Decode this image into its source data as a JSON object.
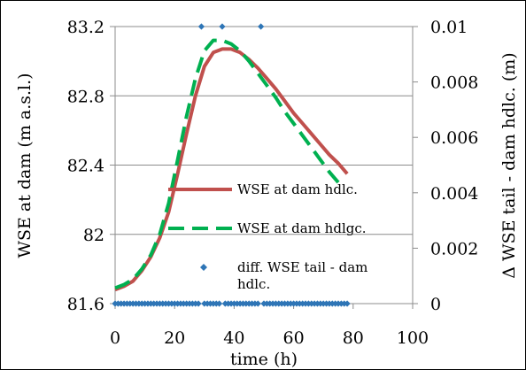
{
  "chart_data": {
    "type": "line",
    "xlabel": "time (h)",
    "ylabel_left": "WSE at dam (m a.s.l.)",
    "ylabel_right": "Δ WSE tail - dam hdlc. (m)",
    "xlim": [
      0,
      100
    ],
    "ylim_left": [
      81.6,
      83.2
    ],
    "ylim_right": [
      0,
      0.01
    ],
    "x_ticks": [
      0,
      20,
      40,
      60,
      80,
      100
    ],
    "x_tick_labels": [
      "0",
      "20",
      "40",
      "60",
      "80",
      "100"
    ],
    "y_left_ticks": [
      81.6,
      82,
      82.4,
      82.8,
      83.2
    ],
    "y_left_tick_labels": [
      "81.6",
      "82",
      "82.4",
      "82.8",
      "83.2"
    ],
    "y_right_ticks": [
      0,
      0.002,
      0.004,
      0.006,
      0.008,
      0.01
    ],
    "y_right_tick_labels": [
      "0",
      "0.002",
      "0.004",
      "0.006",
      "0.008",
      "0.01"
    ],
    "grid": "horizontal",
    "legend_placement": "right",
    "series": [
      {
        "name": "WSE at dam hdlc.",
        "axis": "left",
        "style": "solid",
        "color": "#c0504d",
        "x": [
          0,
          3,
          6,
          9,
          12,
          15,
          18,
          21,
          24,
          27,
          30,
          33,
          36,
          39,
          42,
          45,
          48,
          51,
          54,
          57,
          60,
          63,
          66,
          69,
          72,
          75,
          78
        ],
        "y": [
          81.68,
          81.7,
          81.73,
          81.79,
          81.87,
          81.98,
          82.13,
          82.35,
          82.58,
          82.8,
          82.97,
          83.05,
          83.07,
          83.07,
          83.05,
          83.01,
          82.96,
          82.9,
          82.84,
          82.77,
          82.7,
          82.64,
          82.58,
          82.52,
          82.46,
          82.41,
          82.35
        ]
      },
      {
        "name": "WSE at dam hdlgc.",
        "axis": "left",
        "style": "dashed",
        "color": "#00b050",
        "x": [
          0,
          3,
          6,
          9,
          12,
          15,
          18,
          21,
          24,
          27,
          30,
          33,
          36,
          39,
          42,
          45,
          48,
          51,
          54,
          57,
          60,
          63,
          66,
          69,
          72,
          75
        ],
        "y": [
          81.69,
          81.71,
          81.74,
          81.8,
          81.88,
          82.0,
          82.18,
          82.43,
          82.68,
          82.9,
          83.06,
          83.12,
          83.12,
          83.1,
          83.06,
          83.0,
          82.93,
          82.86,
          82.79,
          82.71,
          82.64,
          82.57,
          82.5,
          82.43,
          82.36,
          82.3
        ]
      },
      {
        "name": "diff. WSE tail - dam hdlc.",
        "axis": "right",
        "style": "markers",
        "color": "#2e75b6",
        "x": [
          0,
          1,
          2,
          3,
          4,
          5,
          6,
          7,
          8,
          9,
          10,
          11,
          12,
          13,
          14,
          15,
          16,
          17,
          18,
          19,
          20,
          21,
          22,
          23,
          24,
          25,
          26,
          27,
          28,
          29,
          30,
          31,
          32,
          33,
          34,
          35,
          36,
          37,
          38,
          39,
          40,
          41,
          42,
          43,
          44,
          45,
          46,
          47,
          48,
          49,
          50,
          51,
          52,
          53,
          54,
          55,
          56,
          57,
          58,
          59,
          60,
          61,
          62,
          63,
          64,
          65,
          66,
          67,
          68,
          69,
          70,
          71,
          72,
          73,
          74,
          75,
          76,
          77,
          78
        ],
        "y": [
          0,
          0,
          0,
          0,
          0,
          0,
          0,
          0,
          0,
          0,
          0,
          0,
          0,
          0,
          0,
          0,
          0,
          0,
          0,
          0,
          0,
          0,
          0,
          0,
          0,
          0,
          0,
          0,
          0,
          0.01,
          0,
          0,
          0,
          0,
          0,
          0,
          0.01,
          0,
          0,
          0,
          0,
          0,
          0,
          0,
          0,
          0,
          0,
          0,
          0,
          0.01,
          0,
          0,
          0,
          0,
          0,
          0,
          0,
          0,
          0,
          0,
          0,
          0,
          0,
          0,
          0,
          0,
          0,
          0,
          0,
          0,
          0,
          0,
          0,
          0,
          0,
          0,
          0,
          0,
          0
        ]
      }
    ]
  }
}
